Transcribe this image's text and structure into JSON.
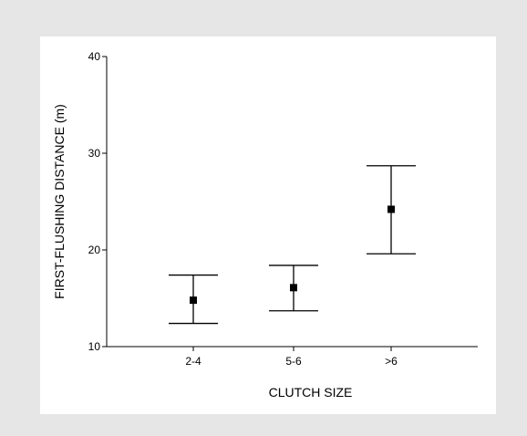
{
  "colors": {
    "background": "#e6e6e6",
    "panel": "#ffffff",
    "ink": "#000000"
  },
  "chart_data": {
    "type": "scatter",
    "title": "",
    "xlabel": "CLUTCH SIZE",
    "ylabel": "FIRST-FLUSHING DISTANCE (m)",
    "categories": [
      "2-4",
      "5-6",
      ">6"
    ],
    "values": [
      14.8,
      16.1,
      24.2
    ],
    "error_low": [
      12.4,
      13.7,
      19.6
    ],
    "error_high": [
      17.4,
      18.4,
      28.7
    ],
    "ylim": [
      10,
      40
    ],
    "yticks": [
      10,
      20,
      30,
      40
    ],
    "grid": false,
    "legend": "none",
    "marker": "filled-square"
  }
}
